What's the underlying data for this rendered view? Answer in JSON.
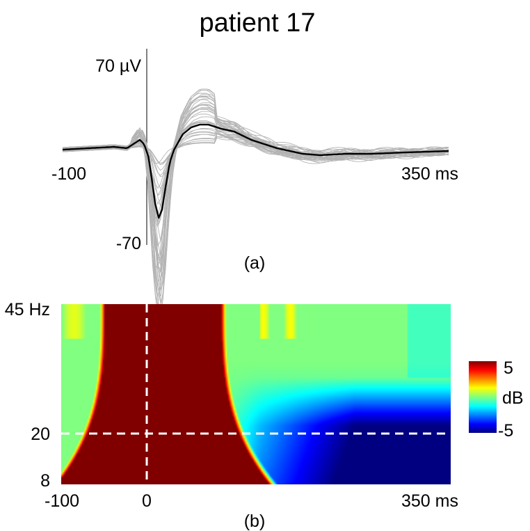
{
  "title": "patient 17",
  "chart_data": [
    {
      "type": "line",
      "panel_label": "(a)",
      "x_unit_label": "ms",
      "y_unit_label": "µV",
      "xlim": [
        -100,
        350
      ],
      "ylim": [
        -70,
        70
      ],
      "x_ticks": [
        "-100",
        "350 ms"
      ],
      "y_ticks": [
        "70 µV",
        "-70"
      ],
      "trial_color": "#b3b3b3",
      "average_color": "#000000",
      "average_series": {
        "x": [
          -100,
          -70,
          -40,
          -25,
          -15,
          -10,
          -5,
          0,
          3,
          8,
          12,
          16,
          20,
          25,
          30,
          40,
          50,
          60,
          70,
          85,
          100,
          120,
          150,
          180,
          200,
          230,
          260,
          300,
          350
        ],
        "y": [
          -1,
          0,
          1,
          0,
          4,
          6,
          3,
          -6,
          -18,
          -40,
          -50,
          -44,
          -28,
          -10,
          -1,
          10,
          15,
          17,
          17,
          14,
          12,
          6,
          0,
          -4,
          -5,
          -4,
          -4,
          -3,
          -2
        ]
      },
      "trial_count": 40
    },
    {
      "type": "heatmap",
      "panel_label": "(b)",
      "x_unit_label": "ms",
      "y_unit_label": "Hz",
      "xlim": [
        -100,
        350
      ],
      "ylim": [
        8,
        45
      ],
      "x_ticks": [
        "-100",
        "0",
        "350 ms"
      ],
      "y_ticks": [
        "45 Hz",
        "20",
        "8"
      ],
      "reference_lines": {
        "x": 0,
        "y": 20
      },
      "colorbar": {
        "min": -5,
        "max": 5,
        "unit": "dB",
        "ticks": [
          "5",
          "dB",
          "-5"
        ],
        "colormap": "jet"
      }
    }
  ]
}
